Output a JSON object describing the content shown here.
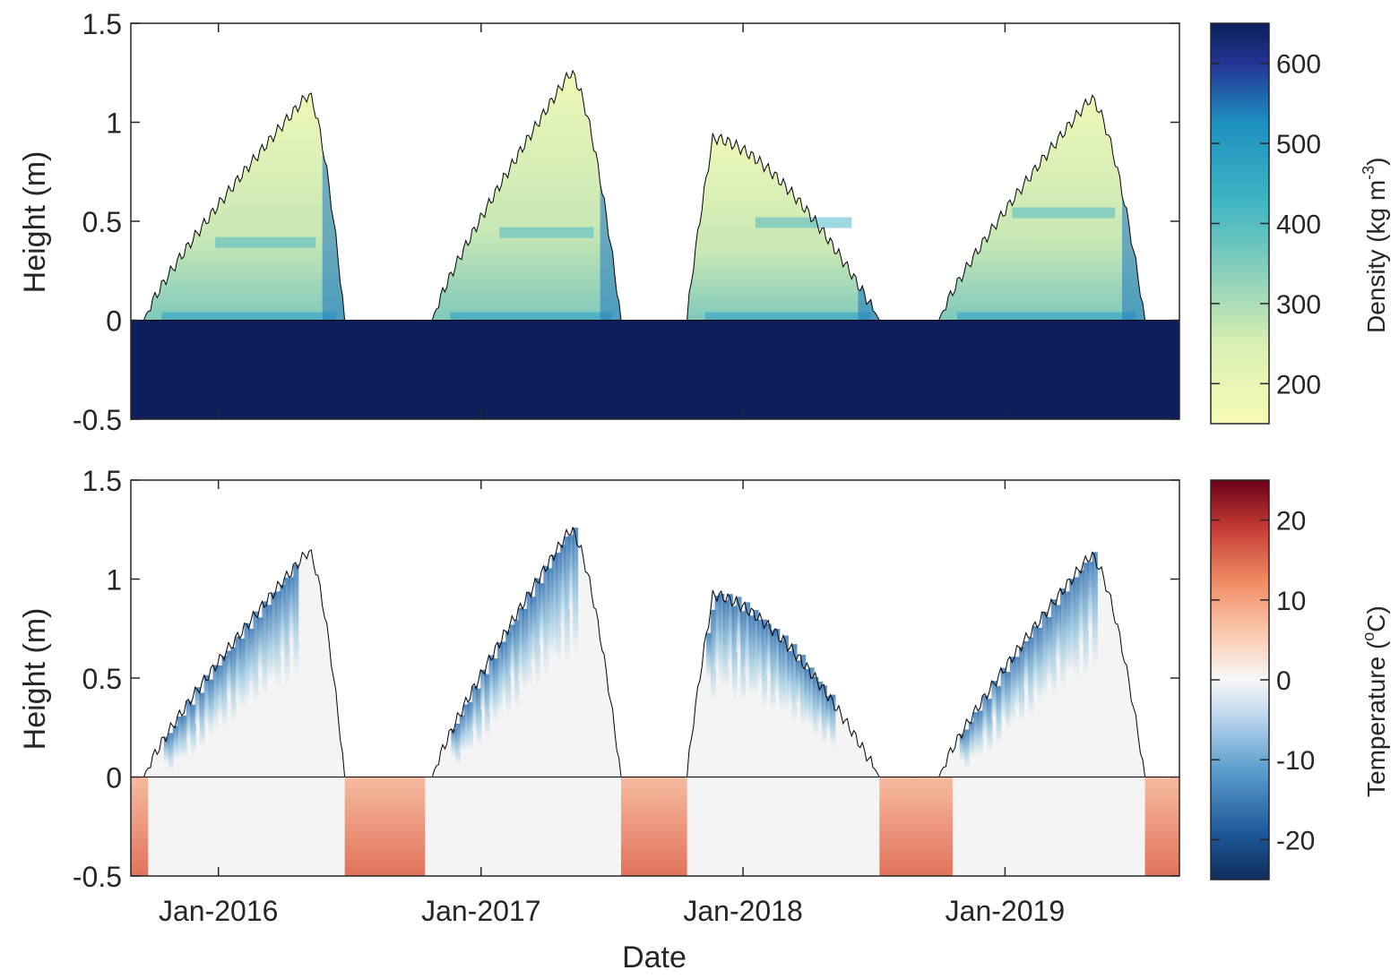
{
  "chart_data": [
    {
      "type": "heatmap",
      "panel": "top",
      "variable": "density",
      "ylabel": "Height (m)",
      "xlabel": "",
      "ylim": [
        -0.5,
        1.5
      ],
      "yticks": [
        -0.5,
        0,
        0.5,
        1,
        1.5
      ],
      "ytick_labels": [
        "-0.5",
        "0",
        "0.5",
        "1",
        "1.5"
      ],
      "xlim": [
        "2015-09-01",
        "2019-09-01"
      ],
      "xticks": [
        "2016-01-01",
        "2017-01-01",
        "2018-01-01",
        "2019-01-01"
      ],
      "xtick_labels": [
        "",
        "",
        "",
        ""
      ],
      "colorbar": {
        "label": "Density (kg m",
        "label_sup": "-3",
        "label_end": ")",
        "range": [
          150,
          650
        ],
        "ticks": [
          200,
          300,
          400,
          500,
          600
        ],
        "tick_labels": [
          "200",
          "300",
          "400",
          "500",
          "600"
        ],
        "colormap": "YlGnBu"
      },
      "ground_value": 650,
      "seasons": [
        {
          "start": "2015-09-19",
          "end": "2016-06-25",
          "peak": 1.14,
          "peak_date": "2016-05-05"
        },
        {
          "start": "2016-10-25",
          "end": "2017-07-15",
          "peak": 1.25,
          "peak_date": "2017-05-05"
        },
        {
          "start": "2017-10-15",
          "end": "2018-07-10",
          "peak": 0.92,
          "peak_date": "2017-11-20"
        },
        {
          "start": "2018-10-01",
          "end": "2019-07-15",
          "peak": 1.12,
          "peak_date": "2019-04-30"
        }
      ]
    },
    {
      "type": "heatmap",
      "panel": "bottom",
      "variable": "temperature",
      "ylabel": "Height (m)",
      "xlabel": "Date",
      "ylim": [
        -0.5,
        1.5
      ],
      "yticks": [
        -0.5,
        0,
        0.5,
        1,
        1.5
      ],
      "ytick_labels": [
        "-0.5",
        "0",
        "0.5",
        "1",
        "1.5"
      ],
      "xlim": [
        "2015-09-01",
        "2019-09-01"
      ],
      "xticks": [
        "2016-01-01",
        "2017-01-01",
        "2018-01-01",
        "2019-01-01"
      ],
      "xtick_labels": [
        "Jan-2016",
        "Jan-2017",
        "Jan-2018",
        "Jan-2019"
      ],
      "colorbar": {
        "label": "Temperature (",
        "label_sup": "o",
        "label_end": "C)",
        "range": [
          -25,
          25
        ],
        "ticks": [
          -20,
          -10,
          0,
          10,
          20
        ],
        "tick_labels": [
          "-20",
          "-10",
          "0",
          "10",
          "20"
        ],
        "colormap": "RdBu_r"
      },
      "warm_ground_periods": [
        {
          "start": "2015-09-01",
          "end": "2015-09-25"
        },
        {
          "start": "2016-06-25",
          "end": "2016-10-15"
        },
        {
          "start": "2017-07-15",
          "end": "2017-10-15"
        },
        {
          "start": "2018-07-10",
          "end": "2018-10-20"
        },
        {
          "start": "2019-07-15",
          "end": "2019-09-01"
        }
      ]
    }
  ]
}
